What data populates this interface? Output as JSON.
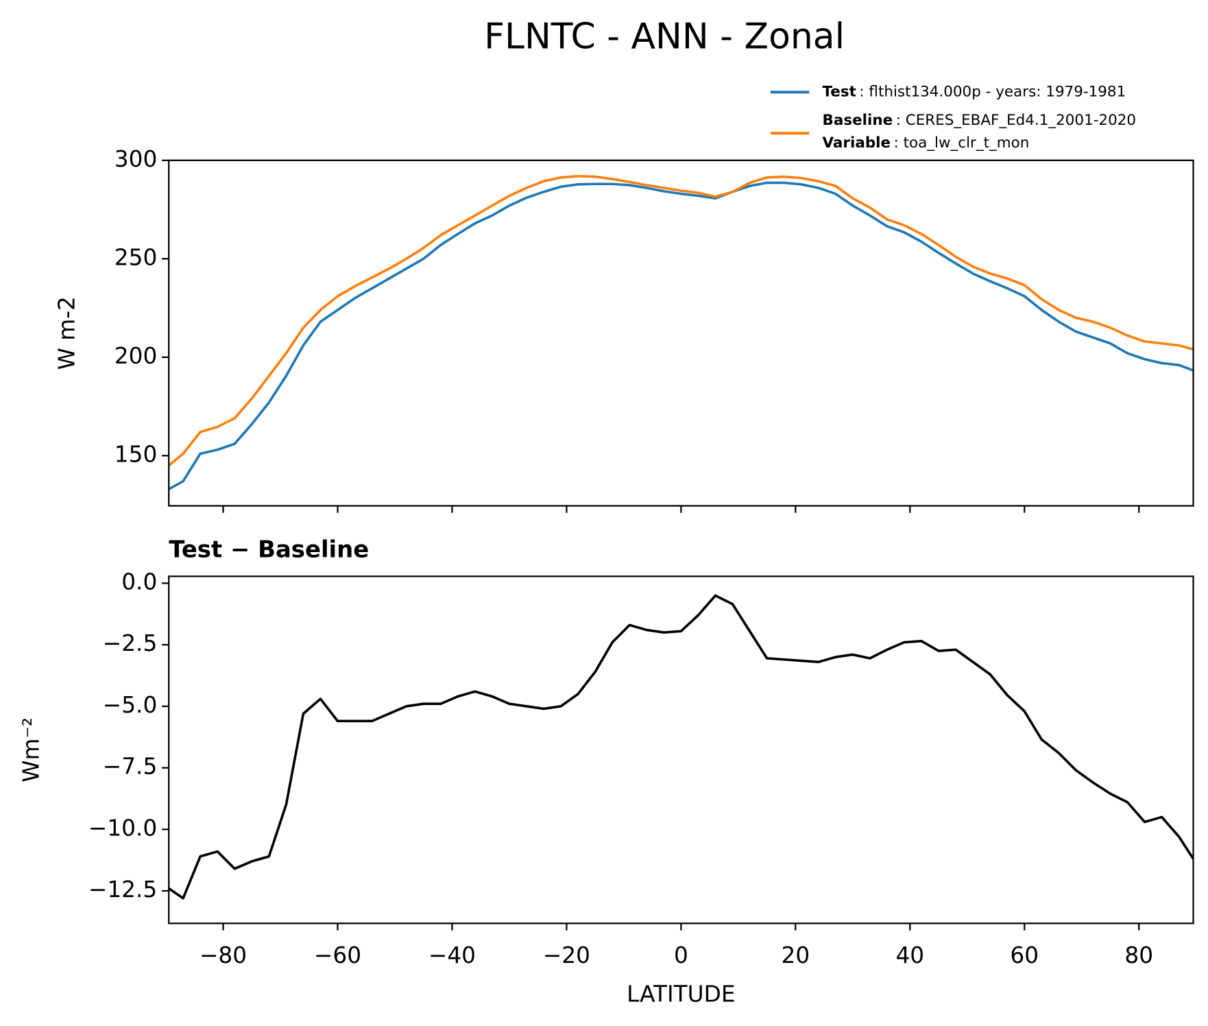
{
  "chart_data": [
    {
      "type": "line",
      "title": "FLNTC - ANN - Zonal",
      "ylabel": "W m-2",
      "x": [
        -89.5,
        -87,
        -84,
        -81,
        -78,
        -75,
        -72,
        -69,
        -66,
        -63,
        -60,
        -57,
        -54,
        -51,
        -48,
        -45,
        -42,
        -39,
        -36,
        -33,
        -30,
        -27,
        -24,
        -21,
        -18,
        -15,
        -12,
        -9,
        -6,
        -3,
        0,
        3,
        6,
        9,
        12,
        15,
        18,
        21,
        24,
        27,
        30,
        33,
        36,
        39,
        42,
        45,
        48,
        51,
        54,
        57,
        60,
        63,
        66,
        69,
        72,
        75,
        78,
        81,
        84,
        87,
        89.5
      ],
      "series": [
        {
          "name": "Test",
          "description": ": flthist134.000p - years: 1979-1981",
          "color": "#1f77b4",
          "values": [
            133,
            137,
            151,
            153,
            156,
            166,
            177,
            190.5,
            206,
            218,
            224,
            230,
            235,
            240,
            245,
            250,
            257,
            262.6,
            268,
            272,
            277,
            281,
            284,
            286.6,
            287.8,
            288,
            288,
            287.4,
            286,
            284.3,
            283,
            282,
            280.7,
            284,
            287,
            288.6,
            288.6,
            287.8,
            286,
            283,
            277,
            272,
            266.5,
            263.4,
            258.7,
            253,
            247.6,
            242.5,
            238.6,
            235,
            231,
            224,
            218,
            213,
            210,
            207,
            202,
            199,
            197,
            196,
            193.3
          ]
        },
        {
          "name": "Baseline",
          "description": ": CERES_EBAF_Ed4.1_2001-2020",
          "color": "#ff7f0e",
          "values": [
            145,
            151,
            162,
            164.6,
            169,
            179,
            190.5,
            202,
            215,
            224,
            231,
            236,
            240.5,
            245,
            250,
            255.5,
            262,
            267,
            272,
            277,
            282,
            286,
            289.4,
            291.3,
            292,
            291.7,
            290.5,
            289,
            287.4,
            286,
            284.6,
            283.5,
            281.5,
            284,
            288.6,
            291.3,
            291.7,
            291,
            289.4,
            287,
            280.7,
            276,
            270,
            267,
            262.6,
            257,
            251,
            246,
            242.5,
            240,
            236.6,
            229.5,
            224,
            220,
            218,
            215,
            211,
            208,
            207,
            206,
            204
          ]
        }
      ],
      "legend_note_name": "Variable",
      "legend_note": ": toa_lw_clr_t_mon",
      "xlim": [
        -89.5,
        89.5
      ],
      "xticks": [
        -80,
        -60,
        -40,
        -20,
        0,
        20,
        40,
        60,
        80
      ],
      "xtick_labels": false,
      "ylim": [
        124.5,
        300
      ],
      "yticks": [
        150,
        200,
        250,
        300
      ]
    },
    {
      "type": "line",
      "title": "Test − Baseline",
      "xlabel": "LATITUDE",
      "ylabel": "Wm⁻²",
      "x": [
        -89.5,
        -87,
        -84,
        -81,
        -78,
        -75,
        -72,
        -69,
        -66,
        -63,
        -60,
        -57,
        -54,
        -51,
        -48,
        -45,
        -42,
        -39,
        -36,
        -33,
        -30,
        -27,
        -24,
        -21,
        -18,
        -15,
        -12,
        -9,
        -6,
        -3,
        0,
        3,
        6,
        9,
        12,
        15,
        18,
        21,
        24,
        27,
        30,
        33,
        36,
        39,
        42,
        45,
        48,
        51,
        54,
        57,
        60,
        63,
        66,
        69,
        72,
        75,
        78,
        81,
        84,
        87,
        89.5
      ],
      "series": [
        {
          "color": "#000000",
          "values": [
            -12.4,
            -12.8,
            -11.1,
            -10.9,
            -11.6,
            -11.3,
            -11.1,
            -9.0,
            -5.3,
            -4.7,
            -5.6,
            -5.6,
            -5.6,
            -5.3,
            -5.0,
            -4.9,
            -4.9,
            -4.6,
            -4.4,
            -4.6,
            -4.9,
            -5.0,
            -5.1,
            -5.0,
            -4.5,
            -3.6,
            -2.4,
            -1.7,
            -1.9,
            -2.0,
            -1.95,
            -1.3,
            -0.5,
            -0.85,
            -1.95,
            -3.05,
            -3.1,
            -3.15,
            -3.2,
            -3.0,
            -2.9,
            -3.05,
            -2.7,
            -2.4,
            -2.35,
            -2.75,
            -2.7,
            -3.2,
            -3.7,
            -4.55,
            -5.2,
            -6.35,
            -6.9,
            -7.6,
            -8.1,
            -8.55,
            -8.9,
            -9.7,
            -9.5,
            -10.3,
            -11.2
          ]
        }
      ],
      "xlim": [
        -89.5,
        89.5
      ],
      "xticks": [
        {
          "value": -80,
          "label": "−80"
        },
        {
          "value": -60,
          "label": "−60"
        },
        {
          "value": -40,
          "label": "−40"
        },
        {
          "value": -20,
          "label": "−20"
        },
        0,
        20,
        40,
        60,
        80
      ],
      "xtick_labels": true,
      "ylim": [
        -13.82,
        0.28
      ],
      "yticks": [
        {
          "value": 0,
          "label": "0.0"
        },
        {
          "value": -2.5,
          "label": "−2.5"
        },
        {
          "value": -5,
          "label": "−5.0"
        },
        {
          "value": -7.5,
          "label": "−7.5"
        },
        {
          "value": -10,
          "label": "−10.0"
        },
        {
          "value": -12.5,
          "label": "−12.5"
        }
      ]
    }
  ]
}
